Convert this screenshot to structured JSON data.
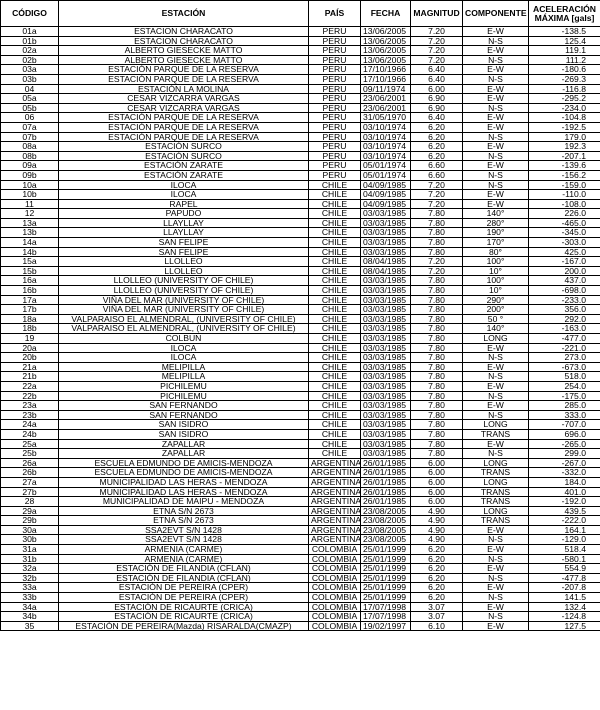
{
  "table": {
    "header": [
      "CÓDIGO",
      "ESTACIÓN",
      "PAÍS",
      "FECHA",
      "MAGNITUD",
      "COMPONENTE",
      "ACELERACIÓN MÁXIMA [gals]"
    ],
    "rows": [
      [
        "01a",
        "ESTACION CHARACATO",
        "PERU",
        "13/06/2005",
        "7.20",
        "E-W",
        "-138.5"
      ],
      [
        "01b",
        "ESTACION CHARACATO",
        "PERU",
        "13/06/2005",
        "7.20",
        "N-S",
        "125.4"
      ],
      [
        "02a",
        "ALBERTO GIESECKE MATTO",
        "PERU",
        "13/06/2005",
        "7.20",
        "E-W",
        "119.1"
      ],
      [
        "02b",
        "ALBERTO GIESECKE MATTO",
        "PERU",
        "13/06/2005",
        "7.20",
        "N-S",
        "111.2"
      ],
      [
        "03a",
        "ESTACIÓN PARQUE DE LA RESERVA",
        "PERU",
        "17/10/1966",
        "6.40",
        "E-W",
        "-180.6"
      ],
      [
        "03b",
        "ESTACIÓN PARQUE DE LA RESERVA",
        "PERU",
        "17/10/1966",
        "6.40",
        "N-S",
        "-269.3"
      ],
      [
        "04",
        "ESTACIÓN LA MOLINA",
        "PERU",
        "09/11/1974",
        "6.00",
        "E-W",
        "-116.8"
      ],
      [
        "05a",
        "CESAR VIZCARRA VARGAS",
        "PERU",
        "23/06/2001",
        "6.90",
        "E-W",
        "-295.2"
      ],
      [
        "05b",
        "CESAR VIZCARRA VARGAS",
        "PERU",
        "23/06/2001",
        "6.90",
        "N-S",
        "-234.0"
      ],
      [
        "06",
        "ESTACIÓN PARQUE DE LA RESERVA",
        "PERU",
        "31/05/1970",
        "6.40",
        "E-W",
        "-104.8"
      ],
      [
        "07a",
        "ESTACIÓN PARQUE DE LA RESERVA",
        "PERU",
        "03/10/1974",
        "6.20",
        "E-W",
        "-192.5"
      ],
      [
        "07b",
        "ESTACIÓN PARQUE DE LA RESERVA",
        "PERU",
        "03/10/1974",
        "6.20",
        "N-S",
        "179.0"
      ],
      [
        "08a",
        "ESTACIÓN SURCO",
        "PERU",
        "03/10/1974",
        "6.20",
        "E-W",
        "192.3"
      ],
      [
        "08b",
        "ESTACIÓN SURCO",
        "PERU",
        "03/10/1974",
        "6.20",
        "N-S",
        "-207.1"
      ],
      [
        "09a",
        "ESTACIÓN ZARATE",
        "PERU",
        "05/01/1974",
        "6.60",
        "E-W",
        "-139.6"
      ],
      [
        "09b",
        "ESTACIÓN ZARATE",
        "PERU",
        "05/01/1974",
        "6.60",
        "N-S",
        "-156.2"
      ],
      [
        "10a",
        "ILOCA",
        "CHILE",
        "04/09/1985",
        "7.20",
        "N-S",
        "-159.0"
      ],
      [
        "10b",
        "ILOCA",
        "CHILE",
        "04/09/1985",
        "7.20",
        "E-W",
        "-110.0"
      ],
      [
        "11",
        "RAPEL",
        "CHILE",
        "04/09/1985",
        "7.20",
        "E-W",
        "-108.0"
      ],
      [
        "12",
        "PAPUDO",
        "CHILE",
        "03/03/1985",
        "7.80",
        "140°",
        "226.0"
      ],
      [
        "13a",
        "LLAYLLAY",
        "CHILE",
        "03/03/1985",
        "7.80",
        "280°",
        "-465.0"
      ],
      [
        "13b",
        "LLAYLLAY",
        "CHILE",
        "03/03/1985",
        "7.80",
        "190°",
        "-345.0"
      ],
      [
        "14a",
        "SAN FELIPE",
        "CHILE",
        "03/03/1985",
        "7.80",
        "170°",
        "-303.0"
      ],
      [
        "14b",
        "SAN FELIPE",
        "CHILE",
        "03/03/1985",
        "7.80",
        "80°",
        "425.0"
      ],
      [
        "15a",
        "LLOLLEO",
        "CHILE",
        "08/04/1985",
        "7.20",
        "100°",
        "-167.0"
      ],
      [
        "15b",
        "LLOLLEO",
        "CHILE",
        "08/04/1985",
        "7.20",
        "10°",
        "200.0"
      ],
      [
        "16a",
        "LLOLLEO (UNIVERSITY OF CHILE)",
        "CHILE",
        "03/03/1985",
        "7.80",
        "100°",
        "437.0"
      ],
      [
        "16b",
        "LLOLLEO (UNIVERSITY OF CHILE)",
        "CHILE",
        "03/03/1985",
        "7.80",
        "10°",
        "-698.0"
      ],
      [
        "17a",
        "VIÑA DEL MAR (UNIVERSITY OF CHILE)",
        "CHILE",
        "03/03/1985",
        "7.80",
        "290°",
        "-233.0"
      ],
      [
        "17b",
        "VIÑA DEL MAR (UNIVERSITY OF CHILE)",
        "CHILE",
        "03/03/1985",
        "7.80",
        "200°",
        "356.0"
      ],
      [
        "18a",
        "VALPARAISO EL ALMENDRAL, (UNIVERSITY OF CHILE)",
        "CHILE",
        "03/03/1985",
        "7.80",
        "50 °",
        "292.0"
      ],
      [
        "18b",
        "VALPARAISO EL ALMENDRAL, (UNIVERSITY OF CHILE)",
        "CHILE",
        "03/03/1985",
        "7.80",
        "140°",
        "-163.0"
      ],
      [
        "19",
        "COLBUN",
        "CHILE",
        "03/03/1985",
        "7.80",
        "LONG",
        "-477.0"
      ],
      [
        "20a",
        "ILOCA",
        "CHILE",
        "03/03/1985",
        "7.80",
        "E-W",
        "-221.0"
      ],
      [
        "20b",
        "ILOCA",
        "CHILE",
        "03/03/1985",
        "7.80",
        "N-S",
        "273.0"
      ],
      [
        "21a",
        "MELIPILLA",
        "CHILE",
        "03/03/1985",
        "7.80",
        "E-W",
        "-673.0"
      ],
      [
        "21b",
        "MELIPILLA",
        "CHILE",
        "03/03/1985",
        "7.80",
        "N-S",
        "518.0"
      ],
      [
        "22a",
        "PICHILEMU",
        "CHILE",
        "03/03/1985",
        "7.80",
        "E-W",
        "254.0"
      ],
      [
        "22b",
        "PICHILEMU",
        "CHILE",
        "03/03/1985",
        "7.80",
        "N-S",
        "-175.0"
      ],
      [
        "23a",
        "SAN FERNANDO",
        "CHILE",
        "03/03/1985",
        "7.80",
        "E-W",
        "285.0"
      ],
      [
        "23b",
        "SAN FERNANDO",
        "CHILE",
        "03/03/1985",
        "7.80",
        "N-S",
        "333.0"
      ],
      [
        "24a",
        "SAN ISIDRO",
        "CHILE",
        "03/03/1985",
        "7.80",
        "LONG",
        "-707.0"
      ],
      [
        "24b",
        "SAN ISIDRO",
        "CHILE",
        "03/03/1985",
        "7.80",
        "TRANS",
        "696.0"
      ],
      [
        "25a",
        "ZAPALLAR",
        "CHILE",
        "03/03/1985",
        "7.80",
        "E-W",
        "-265.0"
      ],
      [
        "25b",
        "ZAPALLAR",
        "CHILE",
        "03/03/1985",
        "7.80",
        "N-S",
        "299.0"
      ],
      [
        "26a",
        "ESCUELA EDMUNDO DE AMICIS-MENDOZA",
        "ARGENTINA",
        "26/01/1985",
        "6.00",
        "LONG",
        "-267.0"
      ],
      [
        "26b",
        "ESCUELA EDMUNDO DE AMICIS-MENDOZA",
        "ARGENTINA",
        "26/01/1985",
        "6.00",
        "TRANS",
        "-332.0"
      ],
      [
        "27a",
        "MUNICIPALIDAD LAS HERAS - MENDOZA",
        "ARGENTINA",
        "26/01/1985",
        "6.00",
        "LONG",
        "184.0"
      ],
      [
        "27b",
        "MUNICIPALIDAD LAS HERAS - MENDOZA",
        "ARGENTINA",
        "26/01/1985",
        "6.00",
        "TRANS",
        "401.0"
      ],
      [
        "28",
        "MUNICIPALIDAD DE MAIPU - MENDOZA",
        "ARGENTINA",
        "26/01/1985",
        "6.00",
        "TRANS",
        "-192.0"
      ],
      [
        "29a",
        "ETNA S/N 2673",
        "ARGENTINA",
        "23/08/2005",
        "4.90",
        "LONG",
        "439.5"
      ],
      [
        "29b",
        "ETNA S/N 2673",
        "ARGENTINA",
        "23/08/2005",
        "4.90",
        "TRANS",
        "-222.0"
      ],
      [
        "30a",
        "SSA2EVT S/N 1428",
        "ARGENTINA",
        "23/08/2005",
        "4.90",
        "E-W",
        "164.1"
      ],
      [
        "30b",
        "SSA2EVT S/N 1428",
        "ARGENTINA",
        "23/08/2005",
        "4.90",
        "N-S",
        "-129.0"
      ],
      [
        "31a",
        "ARMENIA (CARME)",
        "COLOMBIA",
        "25/01/1999",
        "6.20",
        "E-W",
        "518.4"
      ],
      [
        "31b",
        "ARMENIA (CARME)",
        "COLOMBIA",
        "25/01/1999",
        "6.20",
        "N-S",
        "-580.1"
      ],
      [
        "32a",
        "ESTACIÓN DE FILANDIA (CFLAN)",
        "COLOMBIA",
        "25/01/1999",
        "6.20",
        "E-W",
        "554.9"
      ],
      [
        "32b",
        "ESTACIÓN DE FILANDIA (CFLAN)",
        "COLOMBIA",
        "25/01/1999",
        "6.20",
        "N-S",
        "-477.8"
      ],
      [
        "33a",
        "ESTACIÓN DE PEREIRA (CPER)",
        "COLOMBIA",
        "25/01/1999",
        "6.20",
        "E-W",
        "-207.8"
      ],
      [
        "33b",
        "ESTACIÓN DE PEREIRA (CPER)",
        "COLOMBIA",
        "25/01/1999",
        "6.20",
        "N-S",
        "141.5"
      ],
      [
        "34a",
        "ESTACIÓN DE RICAURTE (CRICA)",
        "COLOMBIA",
        "17/07/1998",
        "3.07",
        "E-W",
        "132.4"
      ],
      [
        "34b",
        "ESTACIÓN DE RICAURTE (CRICA)",
        "COLOMBIA",
        "17/07/1998",
        "3.07",
        "N-S",
        "-124.8"
      ],
      [
        "35",
        "ESTACIÓN DE PEREIRA(Mazda) RISARALDA(CMAZP)",
        "COLOMBIA",
        "19/02/1997",
        "6.10",
        "E-W",
        "127.5"
      ]
    ]
  }
}
